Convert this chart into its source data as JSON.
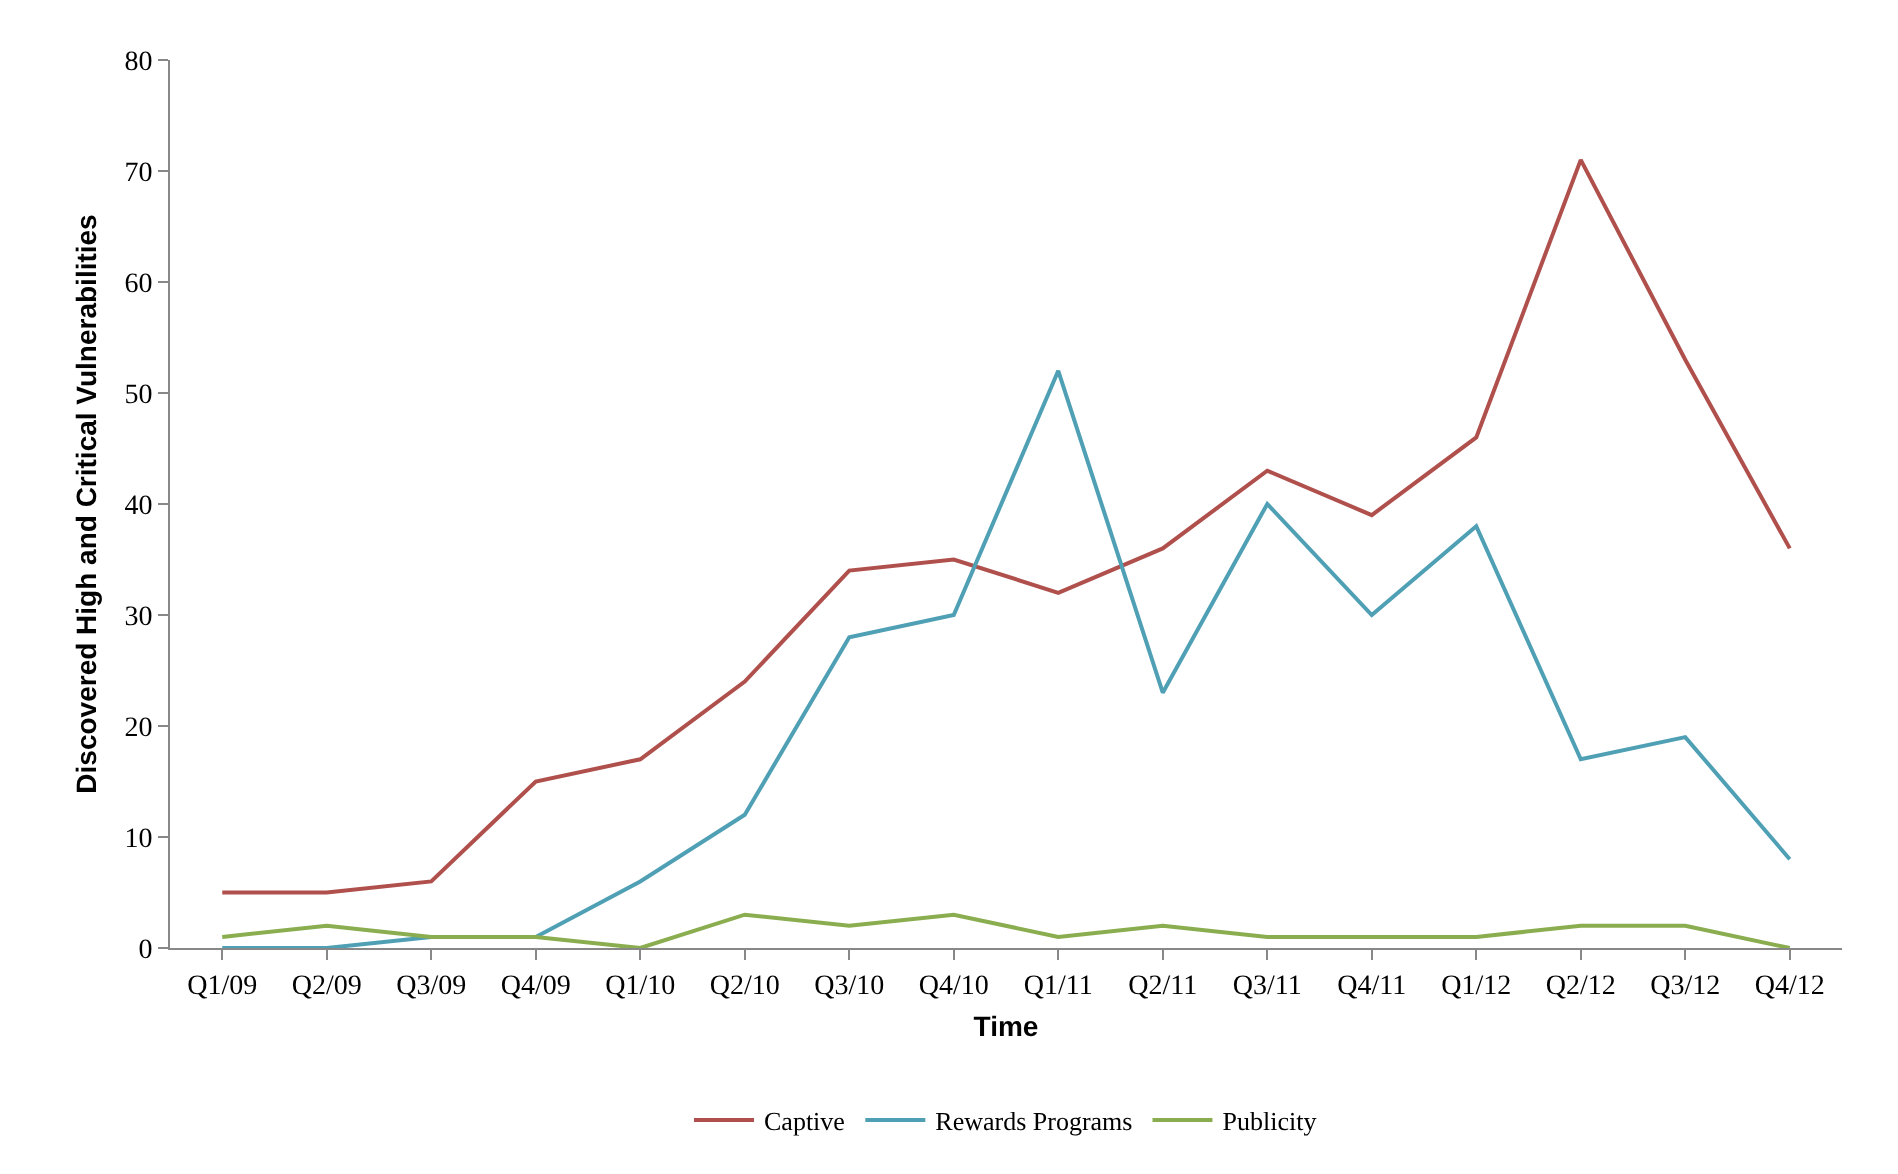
{
  "chart_data": {
    "type": "line",
    "xlabel": "Time",
    "ylabel": "Discovered High and Critical Vulnerabilities",
    "categories": [
      "Q1/09",
      "Q2/09",
      "Q3/09",
      "Q4/09",
      "Q1/10",
      "Q2/10",
      "Q3/10",
      "Q4/10",
      "Q1/11",
      "Q2/11",
      "Q3/11",
      "Q4/11",
      "Q1/12",
      "Q2/12",
      "Q3/12",
      "Q4/12"
    ],
    "series": [
      {
        "name": "Captive",
        "color": "#b0504c",
        "values": [
          5,
          5,
          6,
          15,
          17,
          24,
          34,
          35,
          32,
          36,
          43,
          39,
          46,
          71,
          53,
          36
        ]
      },
      {
        "name": "Rewards Programs",
        "color": "#4fa0b5",
        "values": [
          0,
          0,
          1,
          1,
          6,
          12,
          28,
          30,
          52,
          23,
          40,
          30,
          38,
          17,
          19,
          8
        ]
      },
      {
        "name": "Publicity",
        "color": "#8aad4f",
        "values": [
          1,
          2,
          1,
          1,
          0,
          3,
          2,
          3,
          1,
          2,
          1,
          1,
          1,
          2,
          2,
          0
        ]
      }
    ],
    "ylim": [
      0,
      80
    ],
    "yticks": [
      0,
      10,
      20,
      30,
      40,
      50,
      60,
      70,
      80
    ],
    "grid": false,
    "legend": "bottom",
    "marker": "none",
    "line_style": "solid"
  }
}
